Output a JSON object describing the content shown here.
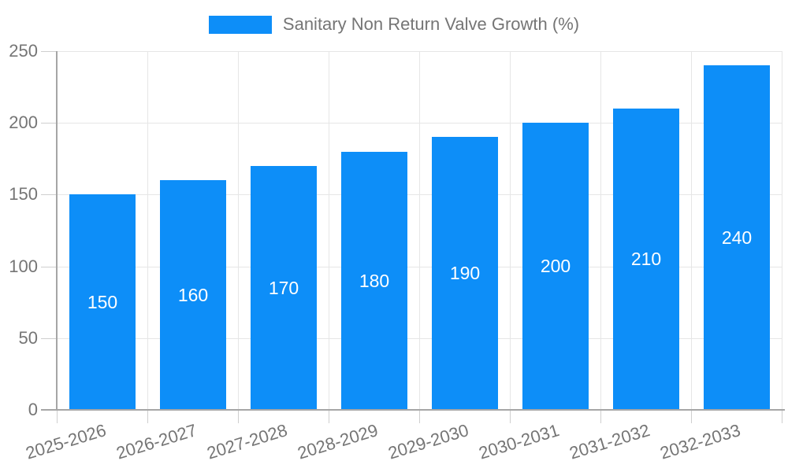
{
  "chart_data": {
    "type": "bar",
    "title": "",
    "legend_label": "Sanitary Non Return Valve Growth (%)",
    "legend_position": "top-center",
    "categories": [
      "2025-2026",
      "2026-2027",
      "2027-2028",
      "2028-2029",
      "2029-2030",
      "2030-2031",
      "2031-2032",
      "2032-2033"
    ],
    "values": [
      150,
      160,
      170,
      180,
      190,
      200,
      210,
      240
    ],
    "bar_labels": [
      "150",
      "160",
      "170",
      "180",
      "190",
      "200",
      "210",
      "240"
    ],
    "xlabel": "",
    "ylabel": "",
    "ylim": [
      0,
      250
    ],
    "yticks": [
      0,
      50,
      100,
      150,
      200,
      250
    ],
    "grid": true,
    "bar_label_position": "inside-center"
  },
  "colors": {
    "bar": "#0d8ef8",
    "grid": "#e6e6e6",
    "tick_stub": "#cfcfcf",
    "axis": "#a6a6a6",
    "axis_text": "#757575",
    "legend_text": "#757575",
    "bar_label": "#ffffff",
    "background": "#ffffff"
  }
}
